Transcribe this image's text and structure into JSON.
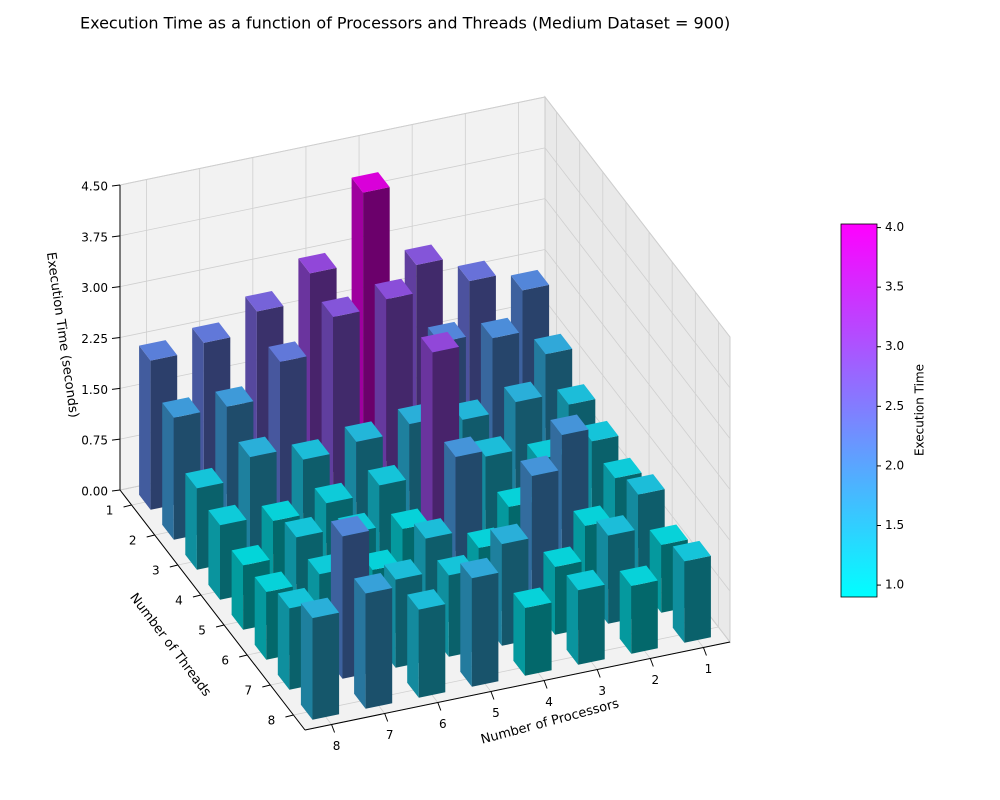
{
  "chart_data": {
    "type": "bar3d",
    "title": "Execution Time as a function of Processors and Threads (Medium Dataset = 900)",
    "x_label": "Number of Processors",
    "y_label": "Number of Threads",
    "z_label": "Execution Time (seconds)",
    "x_categories": [
      "1",
      "2",
      "3",
      "4",
      "5",
      "6",
      "7",
      "8"
    ],
    "y_categories": [
      "1",
      "2",
      "3",
      "4",
      "5",
      "6",
      "7",
      "8"
    ],
    "values": [
      [
        2.1,
        2.4,
        2.8,
        4.03,
        3.0,
        2.6,
        2.3,
        2.2
      ],
      [
        1.6,
        2.0,
        2.1,
        2.9,
        2.8,
        2.3,
        1.8,
        1.8
      ],
      [
        1.3,
        1.5,
        1.4,
        1.5,
        1.4,
        1.3,
        1.5,
        1.2
      ],
      [
        1.2,
        1.1,
        1.3,
        3.0,
        1.2,
        1.1,
        1.0,
        1.1
      ],
      [
        1.1,
        1.9,
        1.0,
        1.9,
        1.0,
        1.1,
        1.2,
        0.95
      ],
      [
        1.3,
        1.0,
        1.9,
        1.0,
        1.3,
        1.0,
        1.1,
        1.0
      ],
      [
        1.0,
        1.3,
        1.0,
        1.5,
        1.2,
        1.3,
        2.1,
        1.2
      ],
      [
        1.2,
        1.0,
        1.1,
        1.0,
        1.6,
        1.3,
        1.7,
        1.5
      ]
    ],
    "zlim": [
      0,
      4.5
    ],
    "zticks": [
      {
        "value": 0,
        "label": "0.00"
      },
      {
        "value": 0.75,
        "label": "0.75"
      },
      {
        "value": 1.5,
        "label": "1.50"
      },
      {
        "value": 2.25,
        "label": "2.25"
      },
      {
        "value": 3,
        "label": "3.00"
      },
      {
        "value": 3.75,
        "label": "3.75"
      },
      {
        "value": 4.5,
        "label": "4.50"
      }
    ],
    "colormap": "cool",
    "colorbar_label": "Execution Time",
    "clim": [
      0.9,
      4.03
    ],
    "colorbar_ticks": [
      {
        "value": 1,
        "label": "1.0"
      },
      {
        "value": 1.5,
        "label": "1.5"
      },
      {
        "value": 2,
        "label": "2.0"
      },
      {
        "value": 2.5,
        "label": "2.5"
      },
      {
        "value": 3,
        "label": "3.0"
      },
      {
        "value": 3.5,
        "label": "3.5"
      },
      {
        "value": 4,
        "label": "4.0"
      }
    ],
    "grid": true
  }
}
